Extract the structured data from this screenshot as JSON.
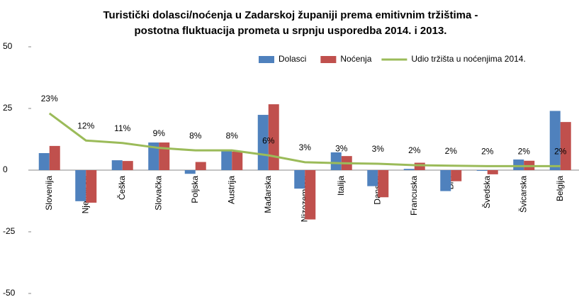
{
  "chart_data": {
    "type": "bar",
    "title": "Turistički dolasci/noćenja u Zadarskoj županiji prema emitivnim tržištima -",
    "subtitle": "postotna fluktuacija prometa u srpnju usporedba 2014. i 2013.",
    "categories": [
      "Slovenija",
      "Njemačka",
      "Češka",
      "Slovačka",
      "Poljska",
      "Austrija",
      "Mađarska",
      "Nizozemska",
      "Italija",
      "Danska",
      "Francuska",
      "BiH",
      "Švedska",
      "Švicarska",
      "Belgija"
    ],
    "series": [
      {
        "name": "Dolasci",
        "type": "bar",
        "color": "#4f81bd",
        "values": [
          6.9,
          -12.6,
          4,
          11.2,
          -1.5,
          8.3,
          22.4,
          -7.5,
          7.2,
          -6.5,
          0.5,
          -8.5,
          -0.3,
          4.3,
          24
        ]
      },
      {
        "name": "Noćenja",
        "type": "bar",
        "color": "#c0504d",
        "values": [
          9.8,
          -13.2,
          3.7,
          11.2,
          3.3,
          7.5,
          26.7,
          -20,
          5.7,
          -11,
          3,
          -4.5,
          -1.7,
          3.8,
          19.5
        ]
      },
      {
        "name": "Udio tržišta u noćenjima 2014.",
        "type": "line",
        "color": "#9bbb59",
        "values": [
          23,
          12,
          11,
          9,
          8,
          8,
          6,
          3.2,
          2.8,
          2.6,
          2,
          1.8,
          1.6,
          1.6,
          1.6
        ],
        "value_labels": [
          "23%",
          "12%",
          "11%",
          "9%",
          "8%",
          "8%",
          "6%",
          "3%",
          "3%",
          "3%",
          "2%",
          "2%",
          "2%",
          "2%",
          "2%"
        ]
      }
    ],
    "ylim": [
      -50,
      50
    ],
    "yticks": [
      -50,
      -25,
      0,
      25,
      50
    ],
    "legend": "top-right"
  }
}
